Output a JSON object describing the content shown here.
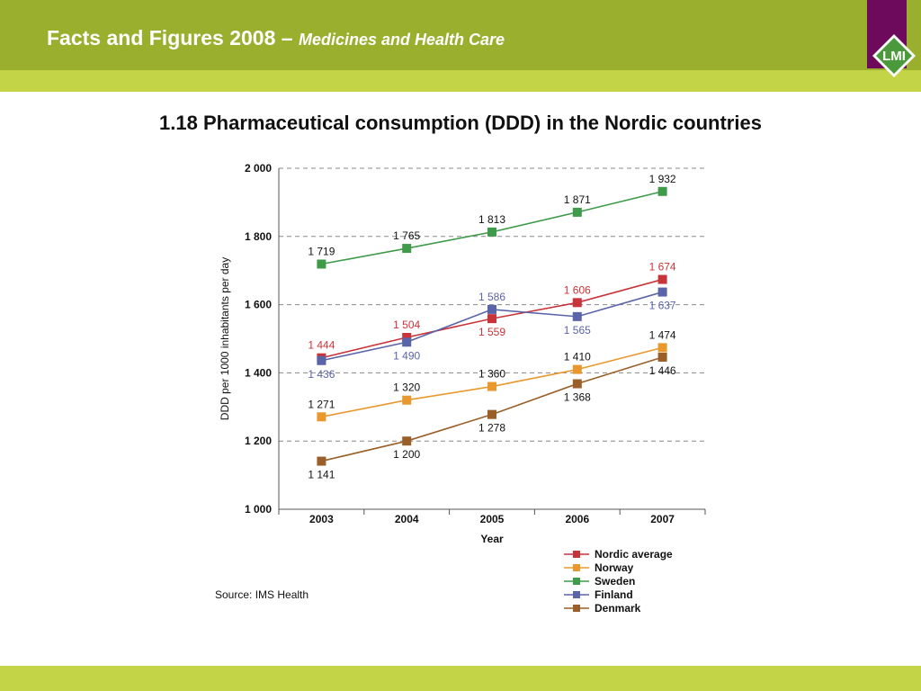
{
  "header": {
    "title": "Facts and Figures 2008 –",
    "subtitle": "Medicines and Health Care",
    "logo_text": "LMI",
    "colors": {
      "bar": "#9aaf2e",
      "sub_bar": "#c3d547",
      "logo_panel": "#6e0a5c",
      "logo": "#4a9a3c"
    }
  },
  "page_title": "1.18 Pharmaceutical consumption (DDD) in the Nordic countries",
  "source": "Source: IMS Health",
  "chart_data": {
    "type": "line",
    "title": "",
    "xlabel": "Year",
    "ylabel": "DDD per 1000 inhabitants per day",
    "categories": [
      "2003",
      "2004",
      "2005",
      "2006",
      "2007"
    ],
    "ylim": [
      1000,
      2000
    ],
    "yticks": [
      1000,
      1200,
      1400,
      1600,
      1800,
      2000
    ],
    "ytick_labels": [
      "1 000",
      "1 200",
      "1 400",
      "1 600",
      "1 800",
      "2 000"
    ],
    "grid": true,
    "legend_position": "bottom-right",
    "series": [
      {
        "name": "Nordic average",
        "color": "#c9343a",
        "values": [
          1444,
          1504,
          1559,
          1606,
          1674
        ],
        "labels": [
          "1 444",
          "1 504",
          "1 559",
          "1 606",
          "1 674"
        ],
        "label_pos": [
          "above",
          "above",
          "below",
          "above",
          "above"
        ]
      },
      {
        "name": "Norway",
        "color": "#e8982c",
        "values": [
          1271,
          1320,
          1360,
          1410,
          1474
        ],
        "labels": [
          "1 271",
          "1 320",
          "1 360",
          "1 410",
          "1 474"
        ],
        "label_pos": [
          "above",
          "above",
          "above",
          "above",
          "above"
        ]
      },
      {
        "name": "Sweden",
        "color": "#3f9a4a",
        "values": [
          1719,
          1765,
          1813,
          1871,
          1932
        ],
        "labels": [
          "1 719",
          "1 765",
          "1 813",
          "1 871",
          "1 932"
        ],
        "label_pos": [
          "above",
          "above",
          "above",
          "above",
          "above"
        ]
      },
      {
        "name": "Finland",
        "color": "#5a64a8",
        "values": [
          1436,
          1490,
          1586,
          1565,
          1637
        ],
        "labels": [
          "1 436",
          "1 490",
          "1 586",
          "1 565",
          "1 637"
        ],
        "label_pos": [
          "below",
          "below",
          "above",
          "below",
          "below"
        ]
      },
      {
        "name": "Denmark",
        "color": "#9a5f28",
        "values": [
          1141,
          1200,
          1278,
          1368,
          1446
        ],
        "labels": [
          "1 141",
          "1 200",
          "1 278",
          "1 368",
          "1 446"
        ],
        "label_pos": [
          "below",
          "below",
          "below",
          "below",
          "below"
        ]
      }
    ]
  }
}
